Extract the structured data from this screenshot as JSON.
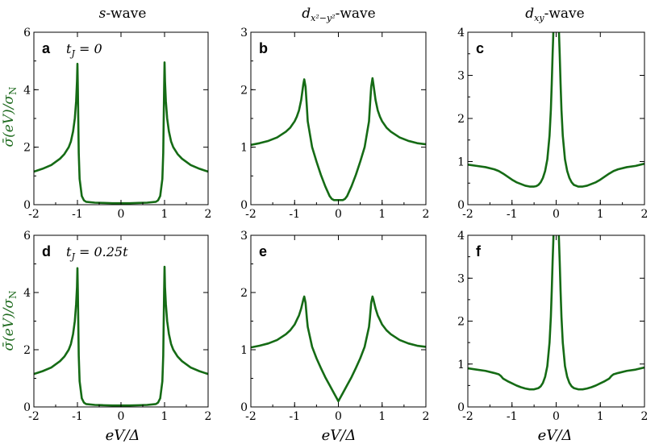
{
  "colors": {
    "line": "#156b15",
    "axis": "#000000",
    "ylabel": "#1f6b1f"
  },
  "column_titles": {
    "s": "s-wave",
    "dx2y2": "d_{x²−y²}-wave",
    "dxy": "d_{xy}-wave"
  },
  "x_label": "eV/Δ",
  "y_label": "σ̄(eV)/σ_N",
  "chart_data": [
    {
      "id": "a",
      "panel_label": "a",
      "annotation": "t_J = 0",
      "type": "line",
      "wave": "s",
      "xlim": [
        -2,
        2
      ],
      "ylim": [
        0,
        6
      ],
      "x_ticks": [
        "-2",
        "-1",
        "0",
        "1",
        "2"
      ],
      "y_ticks": [
        "0",
        "2",
        "4",
        "6"
      ],
      "series": [
        {
          "name": "s-wave",
          "x": [
            -2,
            -1.8,
            -1.6,
            -1.4,
            -1.3,
            -1.2,
            -1.15,
            -1.1,
            -1.06,
            -1.03,
            -1.01,
            -1.0,
            -0.99,
            -0.97,
            -0.95,
            -0.9,
            -0.85,
            -0.8,
            -0.6,
            -0.4,
            -0.2,
            0,
            0.2,
            0.4,
            0.6,
            0.8,
            0.85,
            0.9,
            0.95,
            0.97,
            0.99,
            1.0,
            1.01,
            1.03,
            1.06,
            1.1,
            1.15,
            1.2,
            1.3,
            1.4,
            1.6,
            1.8,
            2
          ],
          "y": [
            1.15,
            1.25,
            1.38,
            1.6,
            1.76,
            2.0,
            2.2,
            2.55,
            3.0,
            3.6,
            4.3,
            4.9,
            4.0,
            1.8,
            0.9,
            0.3,
            0.15,
            0.1,
            0.07,
            0.06,
            0.05,
            0.05,
            0.05,
            0.06,
            0.07,
            0.1,
            0.15,
            0.3,
            0.9,
            1.8,
            4.0,
            4.95,
            4.3,
            3.6,
            3.0,
            2.55,
            2.2,
            2.0,
            1.76,
            1.6,
            1.38,
            1.25,
            1.15
          ]
        }
      ]
    },
    {
      "id": "b",
      "panel_label": "b",
      "annotation": "",
      "type": "line",
      "wave": "dx2y2",
      "xlim": [
        -2,
        2
      ],
      "ylim": [
        0,
        3
      ],
      "x_ticks": [
        "-2",
        "-1",
        "0",
        "1",
        "2"
      ],
      "y_ticks": [
        "0",
        "1",
        "2",
        "3"
      ],
      "series": [
        {
          "name": "d_x2-y2 (tJ=0)",
          "x": [
            -2,
            -1.8,
            -1.6,
            -1.4,
            -1.2,
            -1.1,
            -1.0,
            -0.95,
            -0.9,
            -0.85,
            -0.8,
            -0.78,
            -0.75,
            -0.72,
            -0.7,
            -0.6,
            -0.5,
            -0.4,
            -0.3,
            -0.2,
            -0.15,
            -0.1,
            0,
            0.1,
            0.15,
            0.2,
            0.3,
            0.4,
            0.5,
            0.6,
            0.7,
            0.72,
            0.75,
            0.78,
            0.8,
            0.85,
            0.9,
            0.95,
            1.0,
            1.1,
            1.2,
            1.4,
            1.6,
            1.8,
            2
          ],
          "y": [
            1.04,
            1.07,
            1.11,
            1.17,
            1.27,
            1.34,
            1.45,
            1.53,
            1.64,
            1.82,
            2.1,
            2.18,
            2.05,
            1.7,
            1.45,
            1.0,
            0.75,
            0.52,
            0.32,
            0.15,
            0.1,
            0.08,
            0.08,
            0.08,
            0.1,
            0.15,
            0.32,
            0.52,
            0.75,
            1.0,
            1.45,
            1.7,
            2.05,
            2.2,
            2.1,
            1.82,
            1.64,
            1.53,
            1.45,
            1.34,
            1.27,
            1.17,
            1.11,
            1.07,
            1.05
          ]
        }
      ]
    },
    {
      "id": "c",
      "panel_label": "c",
      "annotation": "",
      "type": "line",
      "wave": "dxy",
      "xlim": [
        -2,
        2
      ],
      "ylim": [
        0,
        4
      ],
      "x_ticks": [
        "-2",
        "-1",
        "0",
        "1",
        "2"
      ],
      "y_ticks": [
        "0",
        "1",
        "2",
        "3",
        "4"
      ],
      "series": [
        {
          "name": "d_xy (tJ=0)",
          "x": [
            -2,
            -1.8,
            -1.6,
            -1.4,
            -1.3,
            -1.2,
            -1.1,
            -1.0,
            -0.9,
            -0.8,
            -0.7,
            -0.6,
            -0.5,
            -0.45,
            -0.4,
            -0.35,
            -0.3,
            -0.25,
            -0.2,
            -0.15,
            -0.12,
            -0.1,
            -0.08,
            -0.06,
            -0.05,
            0.05,
            0.06,
            0.08,
            0.1,
            0.12,
            0.15,
            0.2,
            0.25,
            0.3,
            0.35,
            0.4,
            0.5,
            0.6,
            0.7,
            0.8,
            0.9,
            1.0,
            1.1,
            1.2,
            1.3,
            1.4,
            1.6,
            1.8,
            2
          ],
          "y": [
            0.93,
            0.9,
            0.87,
            0.82,
            0.78,
            0.72,
            0.65,
            0.58,
            0.52,
            0.48,
            0.44,
            0.42,
            0.42,
            0.43,
            0.46,
            0.52,
            0.62,
            0.78,
            1.05,
            1.6,
            2.2,
            2.8,
            3.5,
            4.1,
            4.3,
            4.3,
            4.1,
            3.5,
            2.8,
            2.2,
            1.6,
            1.05,
            0.78,
            0.62,
            0.52,
            0.46,
            0.42,
            0.42,
            0.44,
            0.48,
            0.52,
            0.58,
            0.65,
            0.72,
            0.78,
            0.82,
            0.87,
            0.9,
            0.95
          ]
        }
      ]
    },
    {
      "id": "d",
      "panel_label": "d",
      "annotation": "t_J = 0.25t",
      "type": "line",
      "wave": "s",
      "xlim": [
        -2,
        2
      ],
      "ylim": [
        0,
        6
      ],
      "x_ticks": [
        "-2",
        "-1",
        "0",
        "1",
        "2"
      ],
      "y_ticks": [
        "0",
        "2",
        "4",
        "6"
      ],
      "series": [
        {
          "name": "s-wave (tJ=0.25t)",
          "x": [
            -2,
            -1.8,
            -1.6,
            -1.4,
            -1.3,
            -1.2,
            -1.15,
            -1.1,
            -1.06,
            -1.03,
            -1.01,
            -1.0,
            -0.99,
            -0.97,
            -0.95,
            -0.9,
            -0.85,
            -0.8,
            -0.6,
            -0.4,
            -0.2,
            0,
            0.2,
            0.4,
            0.6,
            0.8,
            0.85,
            0.9,
            0.95,
            0.97,
            0.99,
            1.0,
            1.01,
            1.03,
            1.06,
            1.1,
            1.15,
            1.2,
            1.3,
            1.4,
            1.6,
            1.8,
            2
          ],
          "y": [
            1.15,
            1.25,
            1.38,
            1.6,
            1.76,
            2.0,
            2.2,
            2.55,
            3.0,
            3.6,
            4.2,
            4.85,
            4.0,
            1.8,
            0.9,
            0.3,
            0.15,
            0.1,
            0.07,
            0.06,
            0.05,
            0.05,
            0.05,
            0.06,
            0.07,
            0.1,
            0.15,
            0.3,
            0.9,
            1.8,
            4.0,
            4.9,
            4.2,
            3.6,
            3.0,
            2.55,
            2.2,
            2.0,
            1.76,
            1.6,
            1.38,
            1.25,
            1.15
          ]
        }
      ]
    },
    {
      "id": "e",
      "panel_label": "e",
      "annotation": "",
      "type": "line",
      "wave": "dx2y2",
      "xlim": [
        -2,
        2
      ],
      "ylim": [
        0,
        3
      ],
      "x_ticks": [
        "-2",
        "-1",
        "0",
        "1",
        "2"
      ],
      "y_ticks": [
        "0",
        "1",
        "2",
        "3"
      ],
      "series": [
        {
          "name": "d_x2-y2 (tJ=0.25t)",
          "x": [
            -2,
            -1.8,
            -1.6,
            -1.4,
            -1.2,
            -1.1,
            -1.0,
            -0.95,
            -0.9,
            -0.85,
            -0.8,
            -0.78,
            -0.75,
            -0.72,
            -0.7,
            -0.6,
            -0.5,
            -0.4,
            -0.3,
            -0.2,
            -0.1,
            0,
            0.1,
            0.2,
            0.3,
            0.4,
            0.5,
            0.6,
            0.7,
            0.72,
            0.75,
            0.78,
            0.8,
            0.85,
            0.9,
            0.95,
            1.0,
            1.1,
            1.2,
            1.4,
            1.6,
            1.8,
            2
          ],
          "y": [
            1.04,
            1.07,
            1.11,
            1.17,
            1.27,
            1.34,
            1.44,
            1.52,
            1.6,
            1.72,
            1.88,
            1.93,
            1.82,
            1.55,
            1.4,
            1.05,
            0.85,
            0.68,
            0.52,
            0.38,
            0.24,
            0.1,
            0.24,
            0.38,
            0.52,
            0.68,
            0.85,
            1.05,
            1.4,
            1.55,
            1.82,
            1.93,
            1.88,
            1.72,
            1.6,
            1.52,
            1.44,
            1.34,
            1.27,
            1.17,
            1.11,
            1.07,
            1.05
          ]
        }
      ]
    },
    {
      "id": "f",
      "panel_label": "f",
      "annotation": "",
      "type": "line",
      "wave": "dxy",
      "xlim": [
        -2,
        2
      ],
      "ylim": [
        0,
        4
      ],
      "x_ticks": [
        "-2",
        "-1",
        "0",
        "1",
        "2"
      ],
      "y_ticks": [
        "0",
        "1",
        "2",
        "3",
        "4"
      ],
      "series": [
        {
          "name": "d_xy (tJ=0.25t)",
          "x": [
            -2,
            -1.8,
            -1.6,
            -1.4,
            -1.3,
            -1.25,
            -1.2,
            -1.1,
            -1.0,
            -0.9,
            -0.8,
            -0.7,
            -0.6,
            -0.5,
            -0.4,
            -0.35,
            -0.3,
            -0.25,
            -0.2,
            -0.15,
            -0.12,
            -0.1,
            -0.08,
            -0.06,
            -0.05,
            0.05,
            0.06,
            0.08,
            0.1,
            0.12,
            0.15,
            0.2,
            0.25,
            0.3,
            0.35,
            0.4,
            0.5,
            0.6,
            0.7,
            0.8,
            0.9,
            1.0,
            1.1,
            1.2,
            1.25,
            1.3,
            1.4,
            1.6,
            1.8,
            2
          ],
          "y": [
            0.9,
            0.87,
            0.84,
            0.79,
            0.76,
            0.72,
            0.66,
            0.6,
            0.55,
            0.5,
            0.46,
            0.43,
            0.41,
            0.41,
            0.44,
            0.48,
            0.56,
            0.7,
            0.95,
            1.5,
            2.1,
            2.7,
            3.4,
            4.0,
            4.3,
            4.3,
            4.0,
            3.4,
            2.7,
            2.1,
            1.5,
            0.95,
            0.7,
            0.56,
            0.48,
            0.44,
            0.41,
            0.41,
            0.43,
            0.46,
            0.5,
            0.55,
            0.6,
            0.66,
            0.72,
            0.76,
            0.79,
            0.84,
            0.87,
            0.92
          ]
        }
      ]
    }
  ]
}
